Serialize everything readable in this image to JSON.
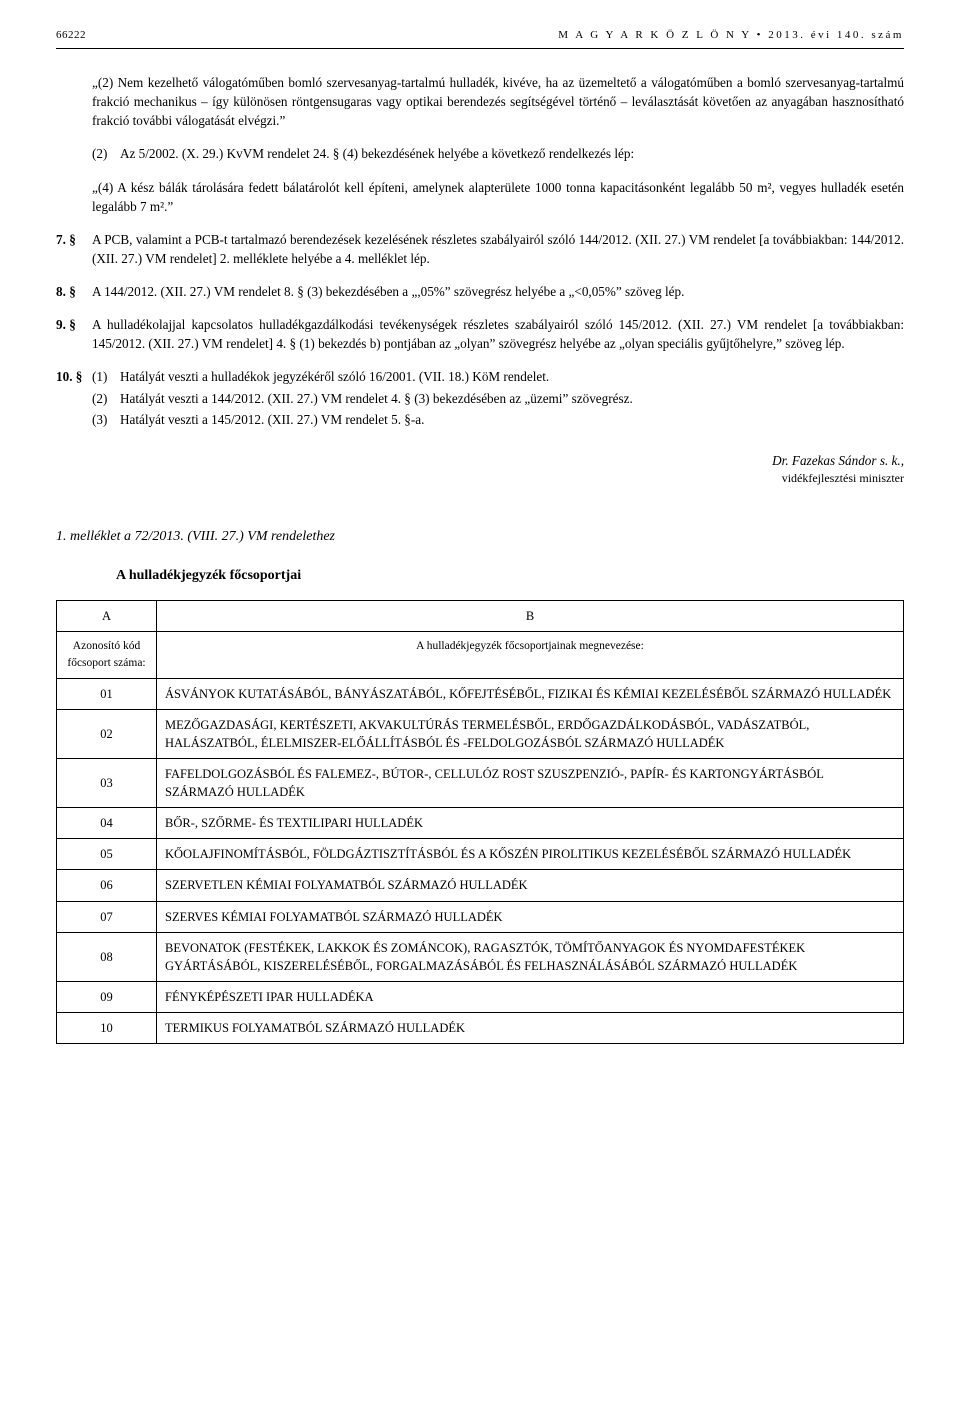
{
  "header": {
    "page_number": "66222",
    "journal": "M A G Y A R   K Ö Z L Ö N Y  •  2013. évi 140. szám"
  },
  "paragraphs": {
    "p2a": "„(2) Nem kezelhető válogatóműben bomló szervesanyag-tartalmú hulladék, kivéve, ha az üzemeltető a válogatóműben a bomló szervesanyag-tartalmú frakció mechanikus – így különösen röntgensugaras vagy optikai berendezés segítségével történő – leválasztását követően az anyagában hasznosítható frakció további válogatását elvégzi.”",
    "p2b_num": "(2)",
    "p2b": "Az 5/2002. (X. 29.) KvVM rendelet 24. § (4) bekezdésének helyébe a következő rendelkezés lép:",
    "p2c": "„(4) A kész bálák tárolására fedett bálatárolót kell építeni, amelynek alapterülete 1000 tonna kapacitásonként legalább 50 m², vegyes hulladék esetén legalább 7 m².”",
    "s7_num": "7. §",
    "s7": "A PCB, valamint a PCB-t tartalmazó berendezések kezelésének részletes szabályairól szóló 144/2012. (XII. 27.) VM rendelet [a továbbiakban: 144/2012. (XII. 27.) VM rendelet] 2. melléklete helyébe a 4. melléklet lép.",
    "s8_num": "8. §",
    "s8": "A 144/2012. (XII. 27.) VM rendelet 8. § (3) bekezdésében a „,05%” szövegrész helyébe a „<0,05%” szöveg lép.",
    "s9_num": "9. §",
    "s9": "A hulladékolajjal kapcsolatos hulladékgazdálkodási tevékenységek részletes szabályairól szóló 145/2012. (XII. 27.) VM rendelet [a továbbiakban: 145/2012. (XII. 27.) VM rendelet] 4. § (1) bekezdés b) pontjában az „olyan” szövegrész helyébe az „olyan speciális gyűjtőhelyre,” szöveg lép.",
    "s10_num": "10. §",
    "s10_1_num": "(1)",
    "s10_1": "Hatályát veszti a hulladékok jegyzékéről szóló 16/2001. (VII. 18.) KöM rendelet.",
    "s10_2_num": "(2)",
    "s10_2": "Hatályát veszti a 144/2012. (XII. 27.) VM rendelet 4. § (3) bekezdésében az „üzemi” szövegrész.",
    "s10_3_num": "(3)",
    "s10_3": "Hatályát veszti a 145/2012. (XII. 27.) VM rendelet 5. §-a."
  },
  "signature": {
    "name": "Dr. Fazekas Sándor s. k.,",
    "role": "vidékfejlesztési miniszter"
  },
  "annex": {
    "title": "1. melléklet a 72/2013. (VIII. 27.) VM rendelethez",
    "subtitle": "A hulladékjegyzék főcsoportjai",
    "col_a": "A",
    "col_b": "B",
    "subhead_a": "Azonosító kód főcsoport száma:",
    "subhead_b": "A hulladékjegyzék főcsoportjainak megnevezése:",
    "rows": [
      {
        "code": "01",
        "text": "ÁSVÁNYOK KUTATÁSÁBÓL, BÁNYÁSZATÁBÓL, KŐFEJTÉSÉBŐL, FIZIKAI ÉS KÉMIAI KEZELÉSÉBŐL SZÁRMAZÓ HULLADÉK"
      },
      {
        "code": "02",
        "text": "MEZŐGAZDASÁGI, KERTÉSZETI, AKVAKULTÚRÁS TERMELÉSBŐL, ERDŐGAZDÁLKODÁSBÓL, VADÁSZATBÓL, HALÁSZATBÓL, ÉLELMISZER-ELŐÁLLÍTÁSBÓL ÉS -FELDOLGOZÁSBÓL SZÁRMAZÓ HULLADÉK"
      },
      {
        "code": "03",
        "text": "FAFELDOLGOZÁSBÓL ÉS FALEMEZ-, BÚTOR-, CELLULÓZ ROST SZUSZPENZIÓ-, PAPÍR- ÉS KARTONGYÁRTÁSBÓL SZÁRMAZÓ HULLADÉK"
      },
      {
        "code": "04",
        "text": "BŐR-, SZŐRME- ÉS TEXTILIPARI HULLADÉK"
      },
      {
        "code": "05",
        "text": "KŐOLAJFINOMÍTÁSBÓL, FÖLDGÁZTISZTÍTÁSBÓL ÉS A KŐSZÉN PIROLITIKUS KEZELÉSÉBŐL SZÁRMAZÓ HULLADÉK"
      },
      {
        "code": "06",
        "text": "SZERVETLEN KÉMIAI FOLYAMATBÓL SZÁRMAZÓ HULLADÉK"
      },
      {
        "code": "07",
        "text": "SZERVES KÉMIAI FOLYAMATBÓL SZÁRMAZÓ HULLADÉK"
      },
      {
        "code": "08",
        "text": "BEVONATOK (FESTÉKEK, LAKKOK ÉS ZOMÁNCOK), RAGASZTÓK, TÖMÍTŐANYAGOK ÉS NYOMDAFESTÉKEK GYÁRTÁSÁBÓL, KISZERELÉSÉBŐL, FORGALMAZÁSÁBÓL ÉS FELHASZNÁLÁSÁBÓL SZÁRMAZÓ HULLADÉK"
      },
      {
        "code": "09",
        "text": "FÉNYKÉPÉSZETI IPAR HULLADÉKA"
      },
      {
        "code": "10",
        "text": "TERMIKUS FOLYAMATBÓL SZÁRMAZÓ HULLADÉK"
      }
    ]
  }
}
